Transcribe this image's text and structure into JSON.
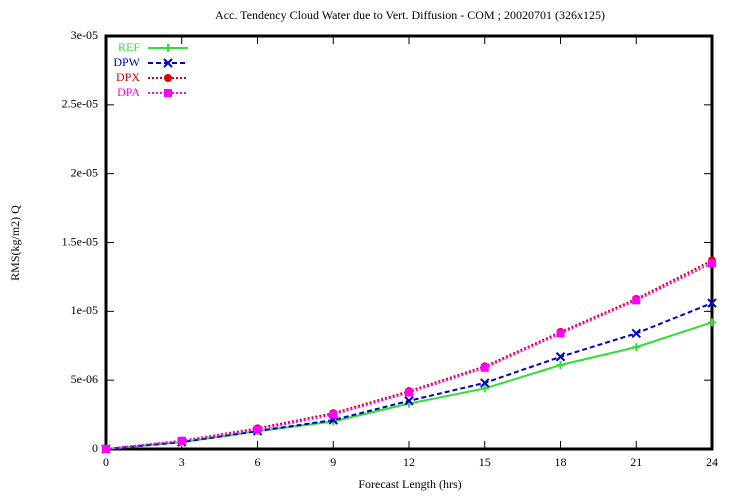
{
  "chart_data": {
    "type": "line",
    "title": "Acc. Tendency Cloud Water due to Vert. Diffusion - COM ; 20020701 (326x125)",
    "x_label": "Forecast Length (hrs)",
    "y_label": "RMS(kg/m2) Q",
    "x": [
      0,
      3,
      6,
      9,
      12,
      15,
      18,
      21,
      24
    ],
    "xlim": [
      0,
      24
    ],
    "xticks": [
      0,
      3,
      6,
      9,
      12,
      15,
      18,
      21,
      24
    ],
    "ylim": [
      0,
      3e-05
    ],
    "yticks": [
      0,
      {
        "value": 5e-06,
        "label": "5e-06"
      },
      {
        "value": 1e-05,
        "label": "1e-05"
      },
      {
        "value": 1.5e-05,
        "label": "1.5e-05"
      },
      {
        "value": 2e-05,
        "label": "2e-05"
      },
      {
        "value": 2.5e-05,
        "label": "2.5e-05"
      },
      {
        "value": 3e-05,
        "label": "3e-05"
      }
    ],
    "legend": "top-left",
    "series": [
      {
        "name": "REF",
        "color": "#33dd33",
        "dash": "solid",
        "marker": "plus",
        "values": [
          0,
          5e-07,
          1.3e-06,
          2e-06,
          3.3e-06,
          4.4e-06,
          6.1e-06,
          7.4e-06,
          9.2e-06
        ]
      },
      {
        "name": "DPW",
        "color": "#0000cc",
        "dash": "dashed",
        "marker": "cross",
        "values": [
          0,
          5e-07,
          1.3e-06,
          2.1e-06,
          3.5e-06,
          4.8e-06,
          6.7e-06,
          8.4e-06,
          1.06e-05
        ]
      },
      {
        "name": "DPX",
        "color": "#dd0000",
        "dash": "dotted",
        "marker": "circle",
        "values": [
          0,
          6e-07,
          1.5e-06,
          2.6e-06,
          4.2e-06,
          6e-06,
          8.5e-06,
          1.09e-05,
          1.37e-05
        ]
      },
      {
        "name": "DPA",
        "color": "#ff00ff",
        "dash": "dotted",
        "marker": "square",
        "values": [
          0,
          6e-07,
          1.4e-06,
          2.5e-06,
          4.1e-06,
          5.9e-06,
          8.4e-06,
          1.08e-05,
          1.35e-05
        ]
      }
    ]
  }
}
